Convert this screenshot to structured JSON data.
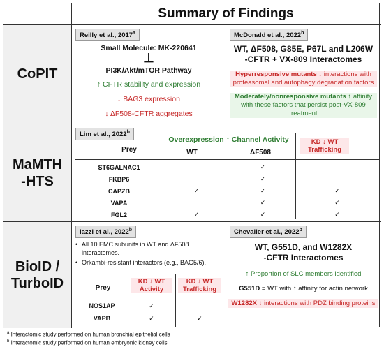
{
  "title": "Summary of Findings",
  "rows": {
    "copit": "CoPIT",
    "mamth": "MaMTH\n-HTS",
    "bioid": "BioID /\nTurboID"
  },
  "reilly": {
    "cite": "Reilly et al., 2017",
    "sup": "a",
    "molecule": "Small Molecule: MK-220641",
    "inhibit": "⊥",
    "pathway": "PI3K/Akt/mTOR Pathway",
    "f1": "↑ CFTR stability and expression",
    "f2": "↓ BAG3 expression",
    "f3": "↓ ΔF508-CFTR aggregates"
  },
  "mcdonald": {
    "cite": "McDonald et al., 2022",
    "sup": "b",
    "heading1": "WT, ΔF508, G85E, P67L and L206W",
    "heading2": "-CFTR + VX-809 Interactomes",
    "hyper_bold": "Hyperresponsive mutants",
    "hyper_rest": " ↓ interactions with",
    "hyper_line2": "proteasomal and autophagy degradation factors",
    "mod_bold": "Moderately/nonresponsive mutants",
    "mod_rest": " ↑ affinity",
    "mod_line2": "with these factors that persist post-VX-809",
    "mod_line3": "treatment"
  },
  "lim": {
    "cite": "Lim et al., 2022",
    "sup": "b",
    "overexp": "Overexpression ↑ Channel Activity",
    "kd1": "KD ↓ WT",
    "kd2": "Trafficking",
    "col_prey": "Prey",
    "col_wt": "WT",
    "col_df": "ΔF508",
    "rows": [
      {
        "prey": "ST6GALNAC1",
        "wt": "",
        "df": "✓",
        "kd": ""
      },
      {
        "prey": "FKBP6",
        "wt": "",
        "df": "✓",
        "kd": ""
      },
      {
        "prey": "CAPZB",
        "wt": "✓",
        "df": "✓",
        "kd": "✓"
      },
      {
        "prey": "VAPA",
        "wt": "",
        "df": "✓",
        "kd": "✓"
      },
      {
        "prey": "FGL2",
        "wt": "✓",
        "df": "✓",
        "kd": "✓"
      }
    ]
  },
  "iazzi": {
    "cite": "Iazzi et al., 2022",
    "sup": "b",
    "b1a": "All 10 EMC subunits in WT and ΔF508",
    "b1b": "interactomes.",
    "b2a": "Orkambi-resistant interactors (e.g., BAG5/6).",
    "col_prey": "Prey",
    "col_act1": "KD ↓ WT",
    "col_act2": "Activity",
    "col_traf1": "KD ↓ WT",
    "col_traf2": "Trafficking",
    "rows": [
      {
        "prey": "NOS1AP",
        "act": "✓",
        "traf": ""
      },
      {
        "prey": "VAPB",
        "act": "✓",
        "traf": "✓"
      }
    ]
  },
  "chevalier": {
    "cite": "Chevalier et al., 2022",
    "sup": "b",
    "heading1": "WT, G551D, and W1282X",
    "heading2": "-CFTR Interactomes",
    "f1": "↑ Proportion of SLC members identified",
    "f2_bold": "G551D",
    "f2_rest": " = WT with ↑ affinity for actin network",
    "f3_bold": "W1282X",
    "f3_rest": " ↓ interactions with PDZ binding proteins"
  },
  "footnotes": {
    "a_sup": "a",
    "a_text": " Interactomic study performed on human bronchial epithelial cells",
    "b_sup": "b",
    "b_text": " Interactomic study performed on human embryonic kidney cells"
  }
}
